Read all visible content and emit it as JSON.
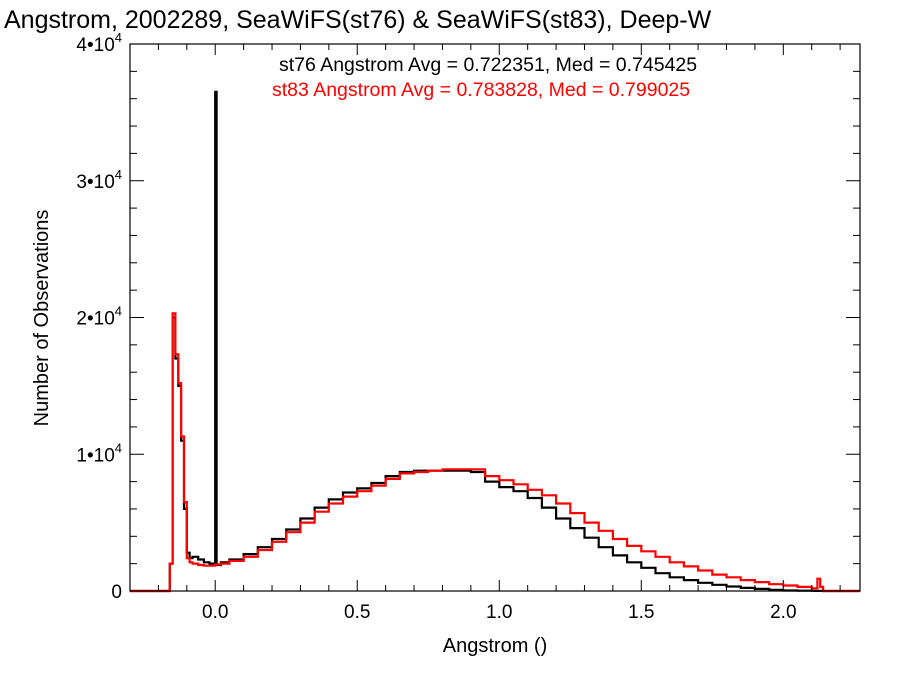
{
  "chart_data": {
    "type": "line",
    "title": "Angstrom, 2002289, SeaWiFS(st76) & SeaWiFS(st83), Deep-W",
    "xlabel": "Angstrom ()",
    "ylabel": "Number of Observations",
    "xlim": [
      -0.3,
      2.27
    ],
    "ylim": [
      0,
      40000
    ],
    "x_ticks": [
      {
        "value": 0.0,
        "label": "0.0"
      },
      {
        "value": 0.5,
        "label": "0.5"
      },
      {
        "value": 1.0,
        "label": "1.0"
      },
      {
        "value": 1.5,
        "label": "1.5"
      },
      {
        "value": 2.0,
        "label": "2.0"
      }
    ],
    "y_ticks": [
      {
        "value": 0,
        "mant": "0",
        "exp": ""
      },
      {
        "value": 10000,
        "mant": "1•10",
        "exp": "4"
      },
      {
        "value": 20000,
        "mant": "2•10",
        "exp": "4"
      },
      {
        "value": 30000,
        "mant": "3•10",
        "exp": "4"
      },
      {
        "value": 40000,
        "mant": "4•10",
        "exp": "4"
      }
    ],
    "grid": false,
    "annotations": [
      {
        "text": "st76 Angstrom Avg = 0.722351, Med = 0.745425",
        "color": "#000000"
      },
      {
        "text": "st83 Angstrom Avg = 0.783828, Med = 0.799025",
        "color": "#ff0000"
      }
    ],
    "series": [
      {
        "color": "#000000",
        "x": [
          -0.3,
          -0.18,
          -0.16,
          -0.15,
          -0.14,
          -0.13,
          -0.12,
          -0.11,
          -0.1,
          -0.09,
          -0.08,
          -0.06,
          -0.04,
          -0.02,
          -0.005,
          0.0,
          0.005,
          0.02,
          0.05,
          0.1,
          0.15,
          0.2,
          0.25,
          0.3,
          0.35,
          0.4,
          0.45,
          0.5,
          0.55,
          0.6,
          0.65,
          0.7,
          0.75,
          0.8,
          0.85,
          0.9,
          0.95,
          1.0,
          1.05,
          1.1,
          1.15,
          1.2,
          1.25,
          1.3,
          1.35,
          1.4,
          1.45,
          1.5,
          1.55,
          1.6,
          1.65,
          1.7,
          1.75,
          1.8,
          1.85,
          1.9,
          1.95,
          2.0,
          2.05,
          2.1,
          2.14,
          2.16,
          2.27
        ],
        "y": [
          0,
          0,
          2000,
          20000,
          17000,
          15000,
          11000,
          6000,
          2800,
          2400,
          2500,
          2300,
          2100,
          2000,
          1900,
          36500,
          1900,
          2100,
          2300,
          2700,
          3200,
          3800,
          4500,
          5300,
          6100,
          6700,
          7200,
          7500,
          7900,
          8400,
          8700,
          8800,
          8800,
          8800,
          8800,
          8700,
          8000,
          7600,
          7300,
          6800,
          6100,
          5300,
          4600,
          3900,
          3200,
          2600,
          2100,
          1700,
          1300,
          1000,
          800,
          600,
          450,
          330,
          230,
          150,
          90,
          40,
          20,
          10,
          0,
          0,
          0
        ]
      },
      {
        "color": "#ff0000",
        "x": [
          -0.3,
          -0.18,
          -0.16,
          -0.15,
          -0.14,
          -0.13,
          -0.12,
          -0.11,
          -0.1,
          -0.09,
          -0.08,
          -0.06,
          -0.04,
          -0.02,
          0.0,
          0.02,
          0.05,
          0.1,
          0.15,
          0.2,
          0.25,
          0.3,
          0.35,
          0.4,
          0.45,
          0.5,
          0.55,
          0.6,
          0.65,
          0.7,
          0.75,
          0.8,
          0.85,
          0.9,
          0.95,
          1.0,
          1.05,
          1.1,
          1.15,
          1.2,
          1.25,
          1.3,
          1.35,
          1.4,
          1.45,
          1.5,
          1.55,
          1.6,
          1.65,
          1.7,
          1.75,
          1.8,
          1.85,
          1.9,
          1.95,
          2.0,
          2.05,
          2.1,
          2.12,
          2.13,
          2.14,
          2.16,
          2.27
        ],
        "y": [
          0,
          0,
          2000,
          20300,
          17300,
          15200,
          11300,
          6500,
          2400,
          2100,
          2000,
          1900,
          1850,
          1850,
          1950,
          2000,
          2200,
          2500,
          3000,
          3600,
          4300,
          5000,
          5800,
          6400,
          6900,
          7300,
          7700,
          8200,
          8600,
          8700,
          8800,
          8900,
          8900,
          8900,
          8400,
          8100,
          7800,
          7400,
          7000,
          6400,
          5700,
          5000,
          4400,
          3800,
          3300,
          2900,
          2500,
          2100,
          1800,
          1500,
          1200,
          1000,
          800,
          650,
          500,
          400,
          300,
          200,
          900,
          300,
          0,
          0,
          0
        ]
      }
    ]
  }
}
